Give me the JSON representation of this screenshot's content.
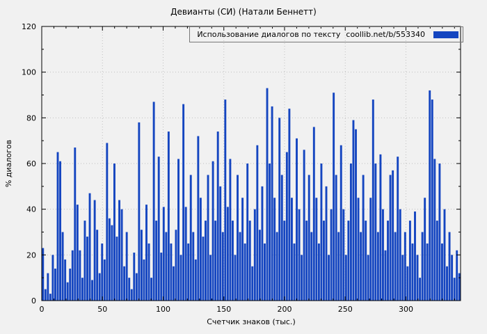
{
  "page": {
    "background": "#f1f1f1"
  },
  "chart_data": {
    "type": "bar",
    "title": "Девианты (СИ) (Натали Беннетт)",
    "legend_label": "Использование диалогов по тексту",
    "legend_link": "coollib.net/b/553340",
    "xlabel": "Счетчик знаков (тыс.)",
    "ylabel": "% диалогов",
    "xlim": [
      0,
      345
    ],
    "ylim": [
      0,
      120
    ],
    "x_ticks": [
      0,
      50,
      100,
      150,
      200,
      250,
      300
    ],
    "y_ticks": [
      0,
      20,
      40,
      60,
      80,
      100,
      120
    ],
    "x_minor_step": 10,
    "y_minor_step": 10,
    "bar_color": "#1445c0",
    "grid_color": "#c0c0c0",
    "axis_color": "#000000",
    "values": [
      23,
      5,
      12,
      3,
      20,
      14,
      65,
      61,
      30,
      18,
      8,
      14,
      22,
      67,
      42,
      22,
      10,
      35,
      28,
      47,
      9,
      44,
      31,
      12,
      25,
      18,
      69,
      36,
      33,
      60,
      28,
      44,
      40,
      15,
      30,
      10,
      5,
      21,
      12,
      78,
      31,
      18,
      42,
      25,
      10,
      87,
      35,
      63,
      21,
      41,
      30,
      74,
      25,
      15,
      31,
      62,
      20,
      86,
      41,
      25,
      55,
      30,
      18,
      72,
      45,
      28,
      35,
      55,
      20,
      61,
      35,
      74,
      50,
      30,
      88,
      41,
      62,
      35,
      20,
      55,
      30,
      45,
      25,
      60,
      35,
      15,
      40,
      68,
      31,
      50,
      25,
      93,
      60,
      85,
      45,
      30,
      80,
      55,
      35,
      65,
      84,
      45,
      25,
      71,
      40,
      20,
      66,
      35,
      55,
      30,
      76,
      45,
      25,
      60,
      35,
      50,
      20,
      40,
      91,
      55,
      30,
      68,
      40,
      20,
      35,
      60,
      79,
      75,
      45,
      30,
      55,
      35,
      20,
      45,
      88,
      60,
      30,
      64,
      40,
      22,
      35,
      55,
      57,
      30,
      63,
      40,
      20,
      30,
      15,
      35,
      25,
      39,
      20,
      10,
      30,
      45,
      25,
      92,
      88,
      62,
      35,
      60,
      25,
      40,
      15,
      30,
      20,
      10,
      22,
      12
    ]
  }
}
